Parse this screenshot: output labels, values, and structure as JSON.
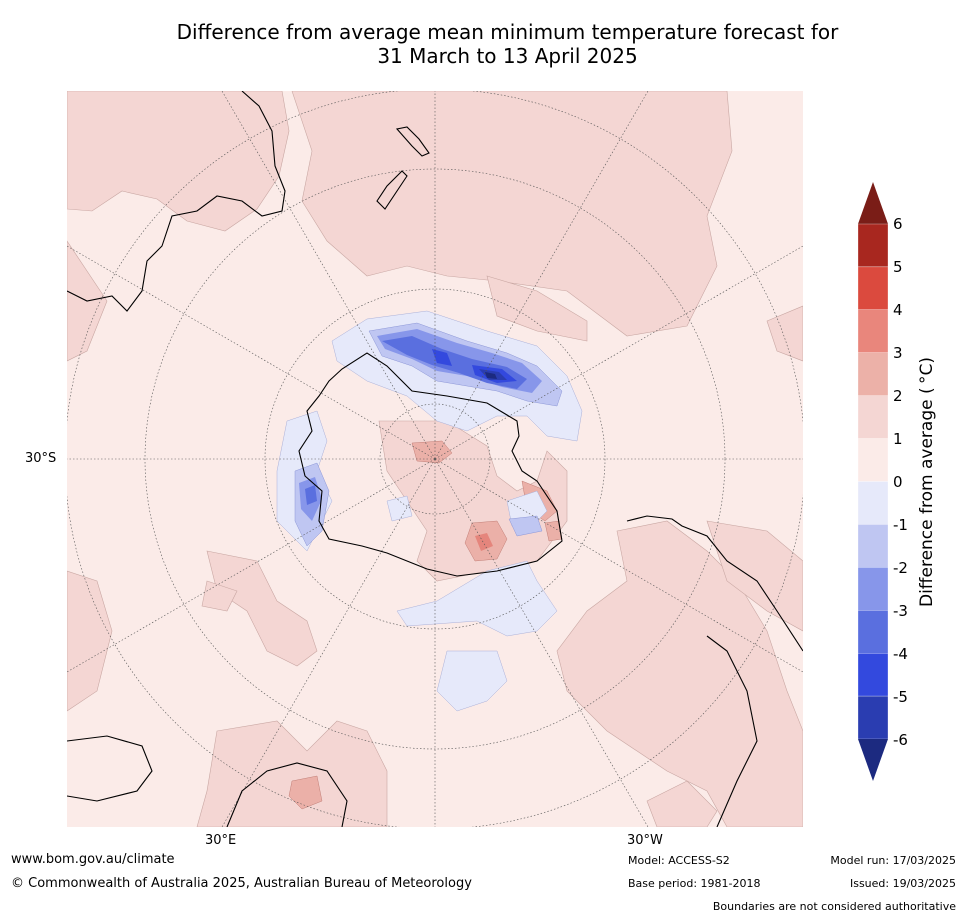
{
  "title": {
    "line1": "Difference from average mean minimum temperature forecast for",
    "line2": "31 March to 13 April 2025"
  },
  "map": {
    "lat_label": "30°S",
    "lon_labels": [
      "30°E",
      "30°W"
    ],
    "colors": {
      "ocean_neutral": "#fbebe8",
      "warm_1_2": "#f4d6d3",
      "warm_2_3": "#ebb0a8",
      "warm_3_4": "#e5857c",
      "cool_0_m1": "#e6e9fa",
      "cool_m1_m2": "#bfc6f2",
      "cool_m2_m3": "#8796ea",
      "cool_m3_m4": "#5a6fdf",
      "cool_m4_m5": "#3349de",
      "cool_m5_m6": "#2a3db1",
      "cool_below_m6": "#1c2a80"
    }
  },
  "colorbar": {
    "title": "Difference from average ( °C)",
    "ticks": [
      "6",
      "5",
      "4",
      "3",
      "2",
      "1",
      "0",
      "-1",
      "-2",
      "-3",
      "-4",
      "-5",
      "-6"
    ],
    "bands": [
      "#7a1d17",
      "#a8271f",
      "#db4a3e",
      "#e9867c",
      "#ecb1a8",
      "#f4d6d3",
      "#fbebe8",
      "#e6e9fa",
      "#bfc6f2",
      "#8796ea",
      "#5a6fdf",
      "#3349de",
      "#2a3db1",
      "#1c2a80"
    ]
  },
  "footer": {
    "url": "www.bom.gov.au/climate",
    "copyright": "© Commonwealth of Australia 2025, Australian Bureau of Meteorology",
    "model": "Model: ACCESS-S2",
    "base_period": "Base period: 1981-2018",
    "model_run": "Model run: 17/03/2025",
    "issued": "Issued: 19/03/2025",
    "disclaimer": "Boundaries are not considered authoritative"
  }
}
